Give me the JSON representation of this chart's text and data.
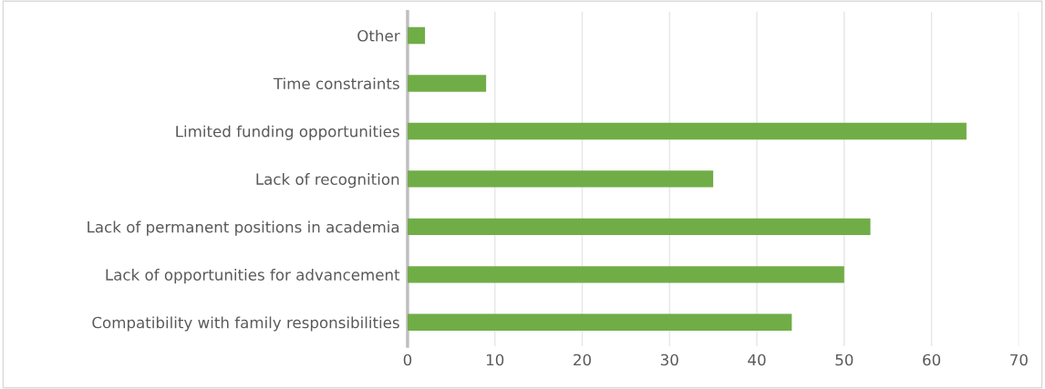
{
  "chart_data": {
    "type": "bar",
    "orientation": "horizontal",
    "categories": [
      "Other",
      "Time constraints",
      "Limited funding opportunities",
      "Lack of recognition",
      "Lack of permanent positions in academia",
      "Lack of opportunities for advancement",
      "Compatibility with family responsibilities"
    ],
    "values": [
      2,
      9,
      64,
      35,
      53,
      50,
      44
    ],
    "color": "#70ad47",
    "xlim": [
      0,
      70
    ],
    "xticks": [
      0,
      10,
      20,
      30,
      40,
      50,
      60,
      70
    ],
    "grid": "x"
  }
}
